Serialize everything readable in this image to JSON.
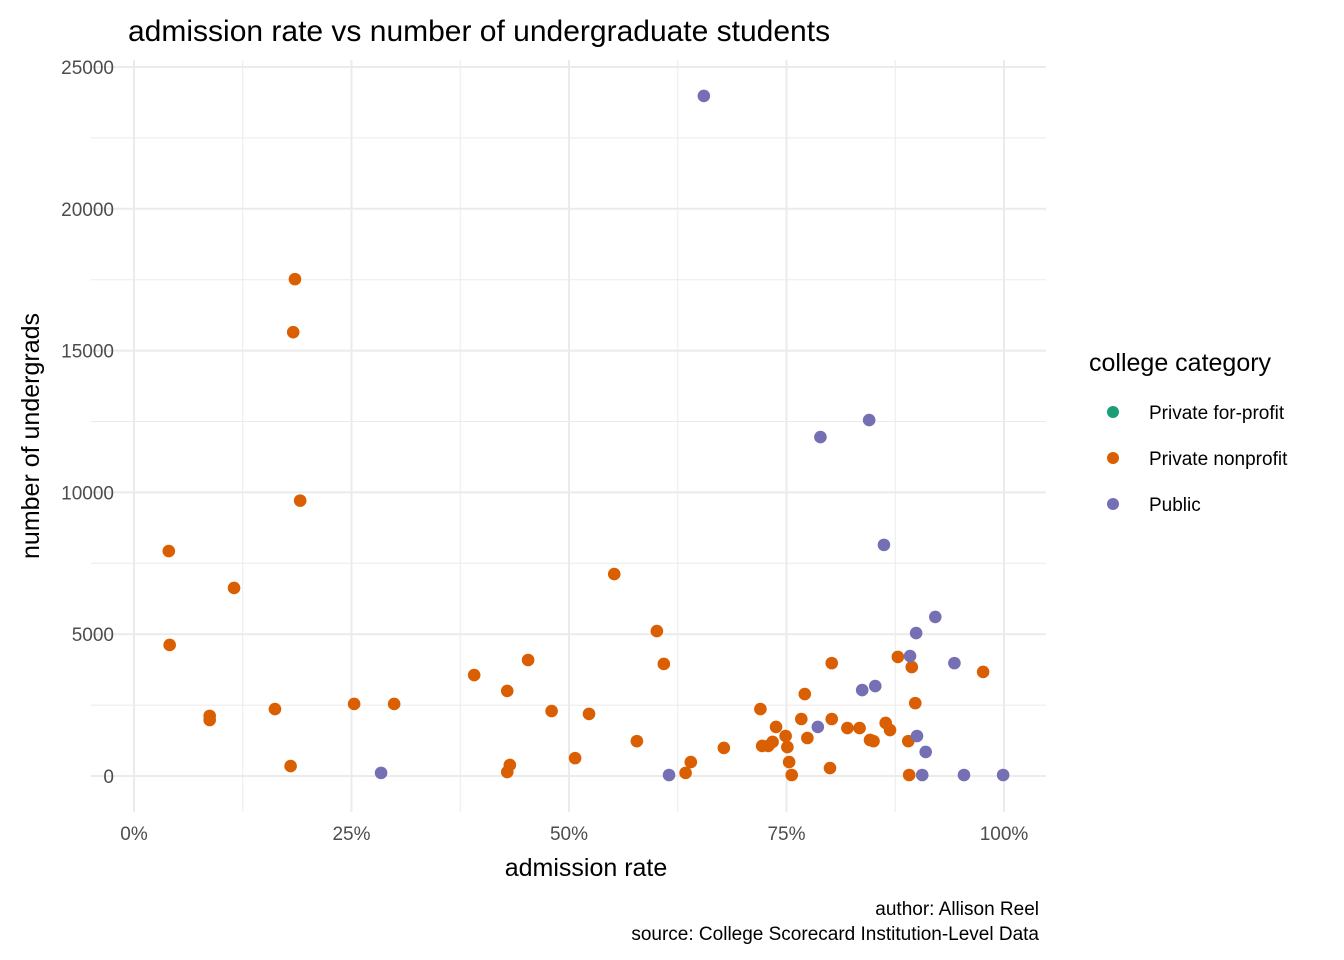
{
  "chart_data": {
    "type": "scatter",
    "title": "admission rate vs number of undergraduate students",
    "xlabel": "admission rate",
    "ylabel": "number of undergrads",
    "xlim": [
      0,
      1
    ],
    "ylim": [
      0,
      25000
    ],
    "x_ticks": [
      0,
      0.25,
      0.5,
      0.75,
      1.0
    ],
    "x_tick_labels": [
      "0%",
      "25%",
      "50%",
      "75%",
      "100%"
    ],
    "y_ticks": [
      0,
      5000,
      10000,
      15000,
      20000,
      25000
    ],
    "y_tick_labels": [
      "0",
      "5000",
      "10000",
      "15000",
      "20000",
      "25000"
    ],
    "grid": true,
    "legend": {
      "title": "college category",
      "position": "right",
      "entries": [
        {
          "label": "Private for-profit",
          "color": "#1b9e77"
        },
        {
          "label": "Private nonprofit",
          "color": "#d95f02"
        },
        {
          "label": "Public",
          "color": "#7570b3"
        }
      ]
    },
    "caption": [
      "author: Allison Reel",
      "source: College Scorecard Institution-Level Data"
    ],
    "series": [
      {
        "name": "Private for-profit",
        "color": "#1b9e77",
        "points": []
      },
      {
        "name": "Private nonprofit",
        "color": "#d95f02",
        "points": [
          [
            0.04,
            7930
          ],
          [
            0.041,
            4620
          ],
          [
            0.087,
            2120
          ],
          [
            0.087,
            1975
          ],
          [
            0.115,
            6630
          ],
          [
            0.162,
            2360
          ],
          [
            0.18,
            350
          ],
          [
            0.183,
            15650
          ],
          [
            0.185,
            17520
          ],
          [
            0.191,
            9710
          ],
          [
            0.253,
            2540
          ],
          [
            0.299,
            2540
          ],
          [
            0.391,
            3560
          ],
          [
            0.429,
            3000
          ],
          [
            0.429,
            140
          ],
          [
            0.432,
            390
          ],
          [
            0.453,
            4090
          ],
          [
            0.48,
            2290
          ],
          [
            0.507,
            630
          ],
          [
            0.523,
            2190
          ],
          [
            0.552,
            7120
          ],
          [
            0.578,
            1230
          ],
          [
            0.601,
            5110
          ],
          [
            0.609,
            3950
          ],
          [
            0.634,
            110
          ],
          [
            0.64,
            490
          ],
          [
            0.678,
            990
          ],
          [
            0.72,
            2360
          ],
          [
            0.722,
            1060
          ],
          [
            0.729,
            1060
          ],
          [
            0.734,
            1200
          ],
          [
            0.738,
            1730
          ],
          [
            0.749,
            1410
          ],
          [
            0.751,
            1020
          ],
          [
            0.753,
            490
          ],
          [
            0.756,
            35
          ],
          [
            0.767,
            2010
          ],
          [
            0.771,
            2890
          ],
          [
            0.774,
            1340
          ],
          [
            0.8,
            280
          ],
          [
            0.802,
            2010
          ],
          [
            0.802,
            3980
          ],
          [
            0.82,
            1690
          ],
          [
            0.834,
            1690
          ],
          [
            0.846,
            1270
          ],
          [
            0.85,
            1230
          ],
          [
            0.864,
            1870
          ],
          [
            0.869,
            1620
          ],
          [
            0.878,
            4200
          ],
          [
            0.89,
            1230
          ],
          [
            0.891,
            35
          ],
          [
            0.894,
            3840
          ],
          [
            0.898,
            2570
          ],
          [
            0.976,
            3670
          ]
        ]
      },
      {
        "name": "Public",
        "color": "#7570b3",
        "points": [
          [
            0.284,
            110
          ],
          [
            0.615,
            35
          ],
          [
            0.655,
            23980
          ],
          [
            0.786,
            1730
          ],
          [
            0.789,
            11950
          ],
          [
            0.837,
            3030
          ],
          [
            0.845,
            12550
          ],
          [
            0.852,
            3170
          ],
          [
            0.862,
            8150
          ],
          [
            0.892,
            4230
          ],
          [
            0.899,
            5040
          ],
          [
            0.9,
            1410
          ],
          [
            0.906,
            35
          ],
          [
            0.91,
            850
          ],
          [
            0.921,
            5610
          ],
          [
            0.943,
            3980
          ],
          [
            0.954,
            35
          ],
          [
            0.999,
            35
          ]
        ]
      }
    ]
  }
}
